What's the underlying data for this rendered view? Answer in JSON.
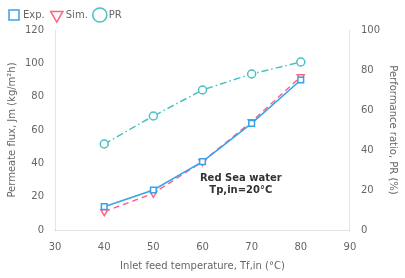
{
  "chart_data": {
    "type": "line",
    "x": [
      40,
      50,
      60,
      70,
      80
    ],
    "series": [
      {
        "name": "Exp.",
        "values": [
          14,
          24,
          41,
          64,
          90
        ],
        "marker": "square",
        "line_style": "solid"
      },
      {
        "name": "Sim.",
        "values": [
          11,
          22,
          41,
          65,
          92
        ],
        "marker": "triangle_down",
        "line_style": "dashed"
      },
      {
        "name": "PR",
        "values": [
          43,
          57,
          70,
          78,
          84
        ],
        "axis": "y2",
        "marker": "circle",
        "line_style": "dashdot"
      }
    ],
    "xlim": [
      30,
      90
    ],
    "xticks": [
      30,
      40,
      50,
      60,
      70,
      80,
      90
    ],
    "ylim": [
      0,
      120
    ],
    "yticks": [
      0,
      20,
      40,
      60,
      80,
      100,
      120
    ],
    "y2lim": [
      0,
      100
    ],
    "y2ticks": [
      0,
      20,
      40,
      60,
      80,
      100
    ],
    "xlabel": "Inlet feed temperature, Tf,in (°C)",
    "ylabel": "Permeate flux, Jm (kg/m²h)",
    "y2label": "Performance ratio, PR (%)",
    "annotation": "Red Sea water\nTp,in=20°C",
    "legend": "upper left",
    "grid": false
  }
}
